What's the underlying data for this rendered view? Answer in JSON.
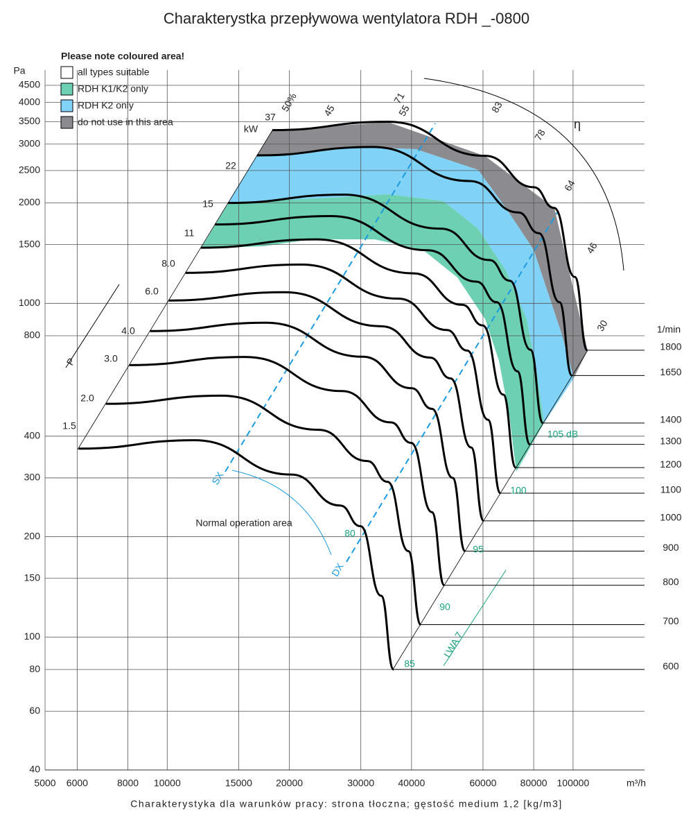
{
  "chart_data": {
    "type": "line",
    "title": "Charakterystka przepływowa wentylatora RDH _-0800",
    "subtitle": "Charakterystyka dla warunków pracy: strona tłoczna; gęstość medium 1,2 [kg/m3]",
    "x_label": "m³/h",
    "y_label": "Pa",
    "speed_label": "1/min",
    "power_unit": "kW",
    "log_x": true,
    "log_y": true,
    "grid": true,
    "line_color": "#000000",
    "xlim": [
      5000,
      150000
    ],
    "ylim": [
      40,
      5000
    ],
    "xticks": [
      5000,
      6000,
      8000,
      10000,
      15000,
      20000,
      30000,
      40000,
      60000,
      80000,
      100000
    ],
    "yticks": [
      40,
      60,
      80,
      100,
      150,
      200,
      300,
      400,
      800,
      1000,
      1500,
      2000,
      2500,
      3000,
      3500,
      4000,
      4500
    ],
    "series": [
      {
        "name": "1800",
        "x": [
          18150,
          35000,
          60700,
          80000,
          89800,
          101000,
          108400
        ],
        "values": [
          3304,
          3500,
          2767,
          2228,
          1932,
          1200,
          724
        ]
      },
      {
        "name": "1650",
        "x": [
          16640,
          32080,
          55640,
          73330,
          82320,
          92580,
          99370
        ],
        "values": [
          2776,
          2941,
          2325,
          1872,
          1623,
          1008,
          608
        ]
      },
      {
        "name": "1400",
        "x": [
          14120,
          27220,
          47210,
          62220,
          69840,
          78560,
          84310
        ],
        "values": [
          1999,
          2117,
          1674,
          1348,
          1169,
          726,
          438
        ]
      },
      {
        "name": "1300",
        "x": [
          13110,
          25280,
          43840,
          57780,
          64860,
          72940,
          78290
        ],
        "values": [
          1723,
          1826,
          1443,
          1162,
          1008,
          626,
          378
        ]
      },
      {
        "name": "1200",
        "x": [
          12100,
          23330,
          40470,
          53330,
          59870,
          67330,
          72270
        ],
        "values": [
          1468,
          1555,
          1230,
          990,
          859,
          533,
          322
        ]
      },
      {
        "name": "1100",
        "x": [
          11090,
          21390,
          37090,
          48890,
          54880,
          61720,
          66240
        ],
        "values": [
          1234,
          1307,
          1033,
          832,
          722,
          448,
          270
        ]
      },
      {
        "name": "1000",
        "x": [
          10080,
          19440,
          33720,
          44440,
          49890,
          56110,
          60220
        ],
        "values": [
          1020,
          1080,
          854,
          688,
          596,
          370,
          223
        ]
      },
      {
        "name": "900",
        "x": [
          9075,
          17500,
          30350,
          40000,
          44900,
          50500,
          54200
        ],
        "values": [
          826,
          875,
          692,
          557,
          483,
          300,
          181
        ]
      },
      {
        "name": "800",
        "x": [
          8066,
          15560,
          26980,
          35560,
          39910,
          44890,
          48180
        ],
        "values": [
          653,
          691,
          546,
          440,
          382,
          237,
          143
        ]
      },
      {
        "name": "700",
        "x": [
          7058,
          13610,
          23610,
          31110,
          34920,
          39280,
          42160
        ],
        "values": [
          500,
          529,
          418,
          337,
          292,
          181,
          109
        ]
      },
      {
        "name": "600",
        "x": [
          6050,
          11670,
          20230,
          26670,
          29930,
          33670,
          36130
        ],
        "values": [
          367,
          389,
          307,
          248,
          215,
          133,
          80
        ]
      }
    ],
    "legend": {
      "title": "Please note coloured area!",
      "items": [
        {
          "name": "all types suitable",
          "color": "#ffffff"
        },
        {
          "name": "RDH K1/K2 only",
          "color": "#6dd0b3"
        },
        {
          "name": "RDH K2 only",
          "color": "#80d2f6"
        },
        {
          "name": "do not use in this area",
          "color": "#8c8c90"
        }
      ]
    },
    "power_labels": [
      "37",
      "22",
      "15",
      "11",
      "8.0",
      "6.0",
      "4.0",
      "3.0",
      "2.0",
      "1.5"
    ],
    "efficiency_labels": [
      "50%",
      "45",
      "71",
      "55",
      "83",
      "78",
      "64",
      "46",
      "30"
    ],
    "sound_labels": [
      "80",
      "85",
      "90",
      "95",
      "100",
      "105 dB"
    ],
    "annotations": {
      "normal": "Normal operation area",
      "sx": "SX",
      "dx": "DX",
      "sound_level": "LWA 7",
      "efficiency": "η",
      "pressure": "P"
    }
  }
}
